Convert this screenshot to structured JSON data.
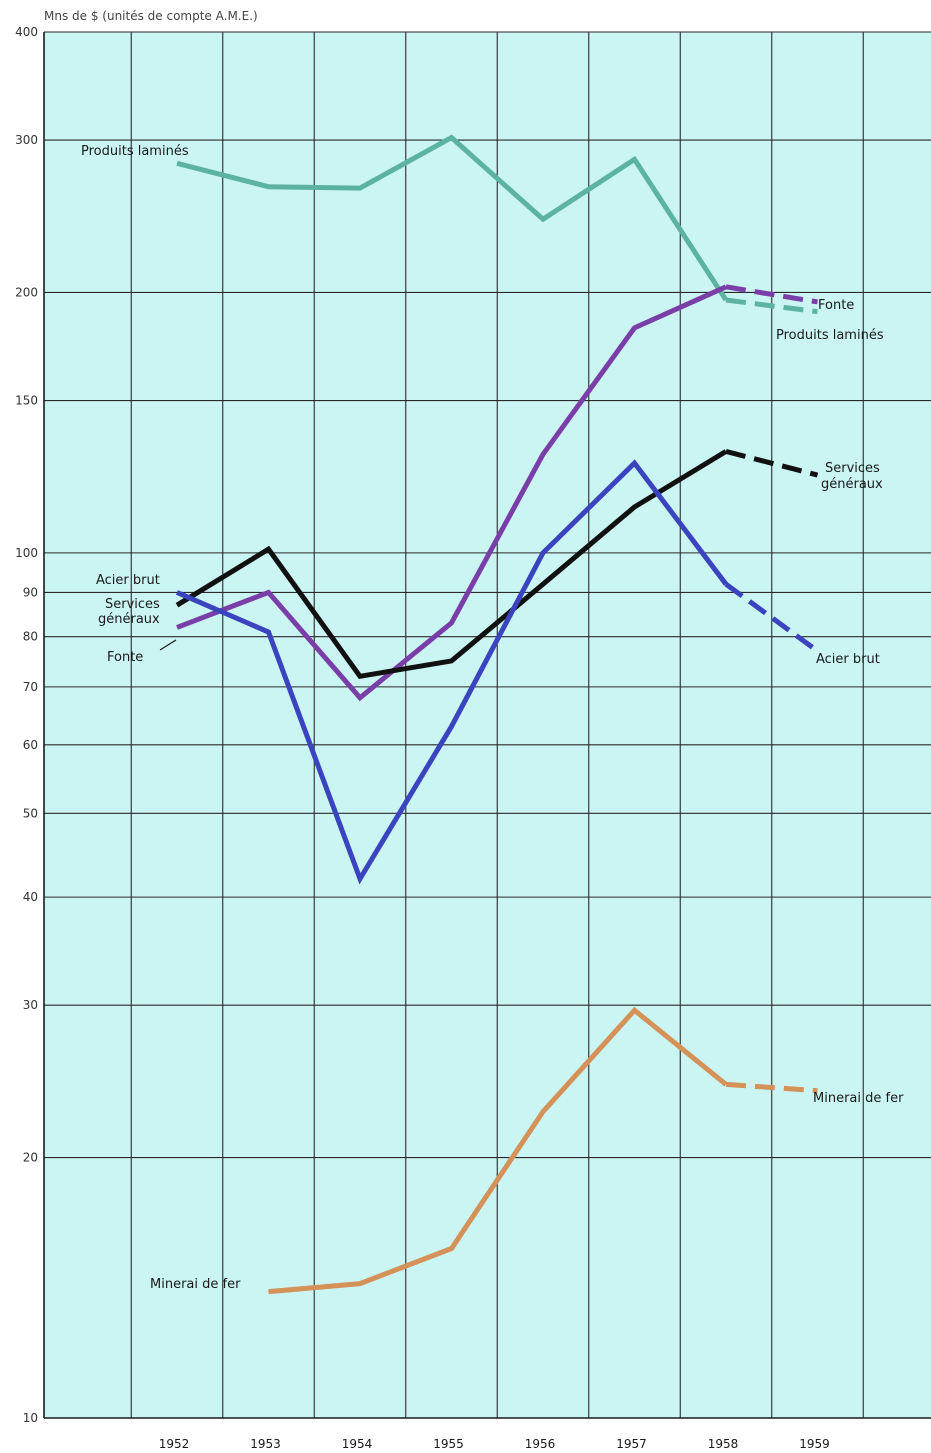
{
  "chart_data": {
    "type": "line",
    "title": "",
    "unit_label": "Mns de $ (unités de compte A.M.E.)",
    "xlabel": "",
    "ylabel": "",
    "y_scale": "log",
    "ylim": [
      10,
      400
    ],
    "y_ticks": [
      10,
      20,
      30,
      40,
      50,
      60,
      70,
      80,
      90,
      100,
      150,
      200,
      300,
      400
    ],
    "y_tick_labels": [
      "10",
      "20",
      "30",
      "40",
      "50",
      "60",
      "70",
      "80",
      "90",
      "100",
      "150",
      "200",
      "300",
      "400"
    ],
    "x": [
      1952,
      1953,
      1954,
      1955,
      1956,
      1957,
      1958,
      1959
    ],
    "x_tick_labels": [
      "1952",
      "1953",
      "1954",
      "1955",
      "1956",
      "1957",
      "1958",
      "1959"
    ],
    "grid": true,
    "background_color": "#cbf5f3",
    "series": [
      {
        "name": "Produits laminés",
        "color": "#5cb39f",
        "x": [
          1952,
          1953,
          1954,
          1955,
          1956,
          1957,
          1958,
          1959
        ],
        "values": [
          282,
          265,
          264,
          302,
          243,
          285,
          196,
          190
        ],
        "dashed_from": 1958,
        "start_label": "Produits laminés",
        "end_label": "Produits laminés"
      },
      {
        "name": "Fonte",
        "color": "#7a3ea8",
        "x": [
          1952,
          1953,
          1954,
          1955,
          1956,
          1957,
          1958,
          1959
        ],
        "values": [
          82,
          90,
          68,
          83,
          130,
          182,
          203,
          195
        ],
        "dashed_from": 1958,
        "start_label": "Fonte",
        "end_label": "Fonte"
      },
      {
        "name": "Services généraux",
        "color": "#111111",
        "x": [
          1952,
          1953,
          1954,
          1955,
          1956,
          1957,
          1958,
          1959
        ],
        "values": [
          87,
          101,
          72,
          75,
          92,
          113,
          131,
          123
        ],
        "dashed_from": 1958,
        "start_label": "Services généraux",
        "end_label": "Services généraux"
      },
      {
        "name": "Acier brut",
        "color": "#3a44bf",
        "x": [
          1952,
          1953,
          1954,
          1955,
          1956,
          1957,
          1958,
          1959
        ],
        "values": [
          90,
          81,
          42,
          63,
          100,
          127,
          92,
          77
        ],
        "dashed_from": 1958,
        "start_label": "Acier brut",
        "end_label": "Acier brut"
      },
      {
        "name": "Minerai de fer",
        "color": "#d49158",
        "x": [
          1953,
          1954,
          1955,
          1956,
          1957,
          1958,
          1959
        ],
        "values": [
          14,
          14.3,
          15.7,
          22.6,
          29.6,
          24.3,
          23.9
        ],
        "dashed_from": 1958,
        "start_label": "Minerai de fer",
        "end_label": "Minerai de fer"
      }
    ]
  }
}
